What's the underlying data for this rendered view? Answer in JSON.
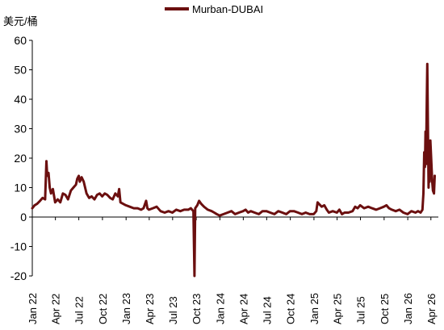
{
  "chart_data": {
    "type": "line",
    "ylabel": "美元/桶",
    "ylim": [
      -20,
      60
    ],
    "yticks": [
      -20,
      -10,
      0,
      10,
      20,
      30,
      40,
      50,
      60
    ],
    "xlim": [
      "2022-01-01",
      "2026-04-30"
    ],
    "xticks": [
      "Jan 22",
      "Apr 22",
      "Jul 22",
      "Oct 22",
      "Jan 23",
      "Apr 23",
      "Jul 23",
      "Oct 23",
      "Jan 24",
      "Apr 24",
      "Jul 24",
      "Oct 24",
      "Jan 25",
      "Apr 25",
      "Jul 25",
      "Oct 25",
      "Jan 26",
      "Apr 26"
    ],
    "legend_position": "top",
    "grid": false,
    "series": [
      {
        "name": "Murban-DUBAI",
        "color": "#6b0f0f",
        "points": [
          [
            "2022-01-01",
            3.0
          ],
          [
            "2022-01-10",
            4.0
          ],
          [
            "2022-01-20",
            4.5
          ],
          [
            "2022-01-31",
            5.5
          ],
          [
            "2022-02-10",
            6.5
          ],
          [
            "2022-02-20",
            6.0
          ],
          [
            "2022-02-25",
            19.0
          ],
          [
            "2022-02-28",
            14.0
          ],
          [
            "2022-03-05",
            15.0
          ],
          [
            "2022-03-10",
            10.0
          ],
          [
            "2022-03-15",
            8.0
          ],
          [
            "2022-03-22",
            9.5
          ],
          [
            "2022-03-31",
            5.0
          ],
          [
            "2022-04-10",
            6.0
          ],
          [
            "2022-04-20",
            5.0
          ],
          [
            "2022-04-30",
            8.0
          ],
          [
            "2022-05-10",
            7.5
          ],
          [
            "2022-05-20",
            6.0
          ],
          [
            "2022-05-31",
            9.0
          ],
          [
            "2022-06-10",
            10.0
          ],
          [
            "2022-06-20",
            11.0
          ],
          [
            "2022-06-25",
            13.0
          ],
          [
            "2022-07-01",
            14.0
          ],
          [
            "2022-07-05",
            12.0
          ],
          [
            "2022-07-12",
            13.5
          ],
          [
            "2022-07-20",
            12.0
          ],
          [
            "2022-07-31",
            8.0
          ],
          [
            "2022-08-10",
            6.5
          ],
          [
            "2022-08-20",
            7.0
          ],
          [
            "2022-08-31",
            6.0
          ],
          [
            "2022-09-10",
            7.5
          ],
          [
            "2022-09-20",
            8.0
          ],
          [
            "2022-09-30",
            7.0
          ],
          [
            "2022-10-10",
            8.0
          ],
          [
            "2022-10-20",
            7.5
          ],
          [
            "2022-10-31",
            6.5
          ],
          [
            "2022-11-10",
            6.0
          ],
          [
            "2022-11-20",
            8.0
          ],
          [
            "2022-11-30",
            7.0
          ],
          [
            "2022-12-05",
            9.5
          ],
          [
            "2022-12-10",
            5.0
          ],
          [
            "2022-12-20",
            4.5
          ],
          [
            "2022-12-31",
            4.0
          ],
          [
            "2023-01-15",
            3.5
          ],
          [
            "2023-01-31",
            3.0
          ],
          [
            "2023-02-15",
            3.0
          ],
          [
            "2023-02-28",
            2.5
          ],
          [
            "2023-03-10",
            3.0
          ],
          [
            "2023-03-20",
            5.5
          ],
          [
            "2023-03-25",
            3.0
          ],
          [
            "2023-03-31",
            2.5
          ],
          [
            "2023-04-15",
            3.0
          ],
          [
            "2023-04-30",
            3.5
          ],
          [
            "2023-05-15",
            2.0
          ],
          [
            "2023-05-31",
            1.5
          ],
          [
            "2023-06-15",
            2.0
          ],
          [
            "2023-06-30",
            1.5
          ],
          [
            "2023-07-15",
            2.5
          ],
          [
            "2023-07-31",
            2.0
          ],
          [
            "2023-08-15",
            2.5
          ],
          [
            "2023-08-31",
            2.5
          ],
          [
            "2023-09-10",
            3.0
          ],
          [
            "2023-09-20",
            2.0
          ],
          [
            "2023-09-24",
            -20.0
          ],
          [
            "2023-09-27",
            3.0
          ],
          [
            "2023-10-05",
            4.0
          ],
          [
            "2023-10-12",
            5.5
          ],
          [
            "2023-10-20",
            4.5
          ],
          [
            "2023-10-31",
            3.5
          ],
          [
            "2023-11-15",
            2.5
          ],
          [
            "2023-11-30",
            2.0
          ],
          [
            "2023-12-10",
            1.5
          ],
          [
            "2023-12-20",
            1.0
          ],
          [
            "2023-12-31",
            0.5
          ],
          [
            "2024-01-15",
            1.0
          ],
          [
            "2024-01-31",
            1.5
          ],
          [
            "2024-02-15",
            2.0
          ],
          [
            "2024-02-29",
            1.0
          ],
          [
            "2024-03-15",
            1.5
          ],
          [
            "2024-03-31",
            2.0
          ],
          [
            "2024-04-10",
            2.5
          ],
          [
            "2024-04-20",
            1.5
          ],
          [
            "2024-04-30",
            2.0
          ],
          [
            "2024-05-15",
            1.5
          ],
          [
            "2024-05-31",
            1.0
          ],
          [
            "2024-06-15",
            2.0
          ],
          [
            "2024-06-30",
            2.0
          ],
          [
            "2024-07-15",
            1.5
          ],
          [
            "2024-07-31",
            1.0
          ],
          [
            "2024-08-15",
            2.0
          ],
          [
            "2024-08-31",
            1.5
          ],
          [
            "2024-09-15",
            1.0
          ],
          [
            "2024-09-30",
            2.0
          ],
          [
            "2024-10-15",
            2.0
          ],
          [
            "2024-10-31",
            1.5
          ],
          [
            "2024-11-15",
            1.0
          ],
          [
            "2024-11-30",
            1.5
          ],
          [
            "2024-12-15",
            1.0
          ],
          [
            "2024-12-31",
            1.0
          ],
          [
            "2025-01-10",
            2.0
          ],
          [
            "2025-01-15",
            5.0
          ],
          [
            "2025-01-20",
            4.5
          ],
          [
            "2025-01-31",
            3.5
          ],
          [
            "2025-02-10",
            4.0
          ],
          [
            "2025-02-20",
            2.5
          ],
          [
            "2025-02-28",
            1.5
          ],
          [
            "2025-03-15",
            2.0
          ],
          [
            "2025-03-31",
            1.5
          ],
          [
            "2025-04-10",
            2.5
          ],
          [
            "2025-04-20",
            1.0
          ],
          [
            "2025-04-30",
            1.5
          ],
          [
            "2025-05-15",
            1.5
          ],
          [
            "2025-05-31",
            2.0
          ],
          [
            "2025-06-10",
            3.5
          ],
          [
            "2025-06-20",
            3.0
          ],
          [
            "2025-06-30",
            4.0
          ],
          [
            "2025-07-15",
            3.0
          ],
          [
            "2025-07-31",
            3.5
          ],
          [
            "2025-08-15",
            3.0
          ],
          [
            "2025-08-31",
            2.5
          ],
          [
            "2025-09-15",
            3.0
          ],
          [
            "2025-09-30",
            3.5
          ],
          [
            "2025-10-10",
            4.0
          ],
          [
            "2025-10-20",
            3.0
          ],
          [
            "2025-10-31",
            2.5
          ],
          [
            "2025-11-15",
            2.0
          ],
          [
            "2025-11-30",
            2.5
          ],
          [
            "2025-12-15",
            1.5
          ],
          [
            "2025-12-31",
            1.0
          ],
          [
            "2026-01-15",
            2.0
          ],
          [
            "2026-01-31",
            1.5
          ],
          [
            "2026-02-10",
            2.0
          ],
          [
            "2026-02-20",
            1.5
          ],
          [
            "2026-02-27",
            2.5
          ],
          [
            "2026-03-03",
            8.0
          ],
          [
            "2026-03-06",
            22.0
          ],
          [
            "2026-03-09",
            17.0
          ],
          [
            "2026-03-11",
            29.0
          ],
          [
            "2026-03-13",
            18.0
          ],
          [
            "2026-03-16",
            40.0
          ],
          [
            "2026-03-18",
            52.0
          ],
          [
            "2026-03-20",
            36.0
          ],
          [
            "2026-03-23",
            10.0
          ],
          [
            "2026-03-25",
            18.0
          ],
          [
            "2026-03-27",
            12.0
          ],
          [
            "2026-03-30",
            26.0
          ],
          [
            "2026-04-02",
            20.0
          ],
          [
            "2026-04-06",
            12.0
          ],
          [
            "2026-04-09",
            9.0
          ],
          [
            "2026-04-13",
            8.0
          ],
          [
            "2026-04-16",
            14.0
          ]
        ]
      }
    ]
  }
}
